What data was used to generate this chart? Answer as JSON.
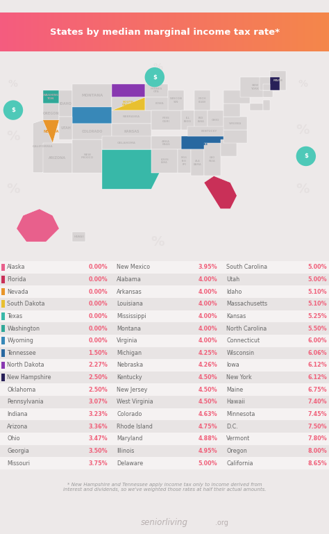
{
  "title": "States by median marginal income tax rate*",
  "title_color_left": "#f45c7f",
  "title_color_right": "#f5874a",
  "bg_color": "#ede9e9",
  "table_row_even": "#f5f2f2",
  "table_row_odd": "#e8e4e4",
  "footer_bg": "#e2dede",
  "footnote": "* New Hampshire and Tennessee apply income tax only to income derived from\ninterest and dividends, so we've weighted those rates at half their actual amounts.",
  "brand_text": "seniorliving",
  "brand_suffix": ".org",
  "value_color": "#f0607a",
  "state_color": "#666666",
  "map_default_color": "#d8d4d4",
  "map_label_color": "#bcb8b8",
  "accent_teal": "#4ec9b8",
  "accent_dollar_color": "#4ec9b8",
  "entries_col1": [
    {
      "state": "Alaska",
      "rate": "0.00%",
      "color": "#e8608c"
    },
    {
      "state": "Florida",
      "rate": "0.00%",
      "color": "#c93058"
    },
    {
      "state": "Nevada",
      "rate": "0.00%",
      "color": "#e8952a"
    },
    {
      "state": "South Dakota",
      "rate": "0.00%",
      "color": "#e8c030"
    },
    {
      "state": "Texas",
      "rate": "0.00%",
      "color": "#38b8a8"
    },
    {
      "state": "Washington",
      "rate": "0.00%",
      "color": "#30a898"
    },
    {
      "state": "Wyoming",
      "rate": "0.00%",
      "color": "#3888b8"
    },
    {
      "state": "Tennessee",
      "rate": "1.50%",
      "color": "#2868a0"
    },
    {
      "state": "North Dakota",
      "rate": "2.27%",
      "color": "#8838b0"
    },
    {
      "state": "New Hampshire",
      "rate": "2.50%",
      "color": "#282058"
    },
    {
      "state": "Oklahoma",
      "rate": "2.50%",
      "color": null
    },
    {
      "state": "Pennsylvania",
      "rate": "3.07%",
      "color": null
    },
    {
      "state": "Indiana",
      "rate": "3.23%",
      "color": null
    },
    {
      "state": "Arizona",
      "rate": "3.36%",
      "color": null
    },
    {
      "state": "Ohio",
      "rate": "3.47%",
      "color": null
    },
    {
      "state": "Georgia",
      "rate": "3.50%",
      "color": null
    },
    {
      "state": "Missouri",
      "rate": "3.75%",
      "color": null
    }
  ],
  "entries_col2": [
    {
      "state": "New Mexico",
      "rate": "3.95%",
      "color": null
    },
    {
      "state": "Alabama",
      "rate": "4.00%",
      "color": null
    },
    {
      "state": "Arkansas",
      "rate": "4.00%",
      "color": null
    },
    {
      "state": "Louisiana",
      "rate": "4.00%",
      "color": null
    },
    {
      "state": "Mississippi",
      "rate": "4.00%",
      "color": null
    },
    {
      "state": "Montana",
      "rate": "4.00%",
      "color": null
    },
    {
      "state": "Virginia",
      "rate": "4.00%",
      "color": null
    },
    {
      "state": "Michigan",
      "rate": "4.25%",
      "color": null
    },
    {
      "state": "Nebraska",
      "rate": "4.26%",
      "color": null
    },
    {
      "state": "Kentucky",
      "rate": "4.50%",
      "color": null
    },
    {
      "state": "New Jersey",
      "rate": "4.50%",
      "color": null
    },
    {
      "state": "West Virginia",
      "rate": "4.50%",
      "color": null
    },
    {
      "state": "Colorado",
      "rate": "4.63%",
      "color": null
    },
    {
      "state": "Rhode Island",
      "rate": "4.75%",
      "color": null
    },
    {
      "state": "Maryland",
      "rate": "4.88%",
      "color": null
    },
    {
      "state": "Illinois",
      "rate": "4.95%",
      "color": null
    },
    {
      "state": "Delaware",
      "rate": "5.00%",
      "color": null
    }
  ],
  "entries_col3": [
    {
      "state": "South Carolina",
      "rate": "5.00%",
      "color": null
    },
    {
      "state": "Utah",
      "rate": "5.00%",
      "color": null
    },
    {
      "state": "Idaho",
      "rate": "5.10%",
      "color": null
    },
    {
      "state": "Massachusetts",
      "rate": "5.10%",
      "color": null
    },
    {
      "state": "Kansas",
      "rate": "5.25%",
      "color": null
    },
    {
      "state": "North Carolina",
      "rate": "5.50%",
      "color": null
    },
    {
      "state": "Connecticut",
      "rate": "6.00%",
      "color": null
    },
    {
      "state": "Wisconsin",
      "rate": "6.06%",
      "color": null
    },
    {
      "state": "Iowa",
      "rate": "6.12%",
      "color": null
    },
    {
      "state": "New York",
      "rate": "6.12%",
      "color": null
    },
    {
      "state": "Maine",
      "rate": "6.75%",
      "color": null
    },
    {
      "state": "Hawaii",
      "rate": "7.40%",
      "color": null
    },
    {
      "state": "Minnesota",
      "rate": "7.45%",
      "color": null
    },
    {
      "state": "D.C.",
      "rate": "7.50%",
      "color": null
    },
    {
      "state": "Vermont",
      "rate": "7.80%",
      "color": null
    },
    {
      "state": "Oregon",
      "rate": "8.00%",
      "color": null
    },
    {
      "state": "California",
      "rate": "8.65%",
      "color": null
    }
  ],
  "state_colors_map": {
    "Alaska": "#e8608c",
    "Florida": "#c93058",
    "Nevada": "#e8952a",
    "South Dakota": "#e8c030",
    "Texas": "#38b8a8",
    "Washington": "#30a898",
    "Wyoming": "#3888b8",
    "Tennessee": "#2868a0",
    "North Dakota": "#8838b0",
    "New Hampshire": "#282058"
  }
}
